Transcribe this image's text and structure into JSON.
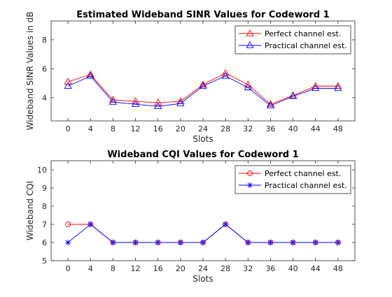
{
  "figure": {
    "background": "#ffffff"
  },
  "chart_data": [
    {
      "type": "line",
      "title": "Estimated Wideband SINR Values for Codeword 1",
      "xlabel": "Slots",
      "ylabel": "Wideband SINR Values in dB",
      "x": [
        0,
        4,
        8,
        12,
        16,
        20,
        24,
        28,
        32,
        36,
        40,
        44,
        48
      ],
      "xticks": [
        "0",
        "4",
        "8",
        "12",
        "16",
        "20",
        "24",
        "28",
        "32",
        "36",
        "40",
        "44",
        "48"
      ],
      "yticks": [
        "4",
        "6",
        "8"
      ],
      "xlim": [
        -3,
        51
      ],
      "ylim": [
        2.4,
        9.3
      ],
      "grid": false,
      "legend_position": "top-right",
      "series": [
        {
          "name": "Perfect channel est.",
          "color": "#ff0000",
          "marker": "triangle",
          "values": [
            5.1,
            5.6,
            3.85,
            3.75,
            3.65,
            3.75,
            4.9,
            5.7,
            4.9,
            3.55,
            4.15,
            4.8,
            4.8
          ]
        },
        {
          "name": "Practical channel est.",
          "color": "#0000ff",
          "marker": "triangle",
          "values": [
            4.8,
            5.5,
            3.7,
            3.55,
            3.4,
            3.6,
            4.8,
            5.5,
            4.7,
            3.45,
            4.1,
            4.65,
            4.65
          ]
        }
      ]
    },
    {
      "type": "line",
      "title": "Wideband CQI Values for Codeword 1",
      "xlabel": "Slots",
      "ylabel": "Wideband CQI",
      "x": [
        0,
        4,
        8,
        12,
        16,
        20,
        24,
        28,
        32,
        36,
        40,
        44,
        48
      ],
      "xticks": [
        "0",
        "4",
        "8",
        "12",
        "16",
        "20",
        "24",
        "28",
        "32",
        "36",
        "40",
        "44",
        "48"
      ],
      "yticks": [
        "5",
        "6",
        "7",
        "8",
        "9",
        "10"
      ],
      "xlim": [
        -3,
        51
      ],
      "ylim": [
        5,
        10.5
      ],
      "grid": false,
      "legend_position": "top-right",
      "series": [
        {
          "name": "Perfect channel est.",
          "color": "#ff0000",
          "marker": "circle",
          "values": [
            7,
            7,
            6,
            6,
            6,
            6,
            6,
            7,
            6,
            6,
            6,
            6,
            6
          ]
        },
        {
          "name": "Practical channel est.",
          "color": "#0000ff",
          "marker": "asterisk",
          "values": [
            6,
            7,
            6,
            6,
            6,
            6,
            6,
            7,
            6,
            6,
            6,
            6,
            6
          ]
        }
      ]
    }
  ]
}
